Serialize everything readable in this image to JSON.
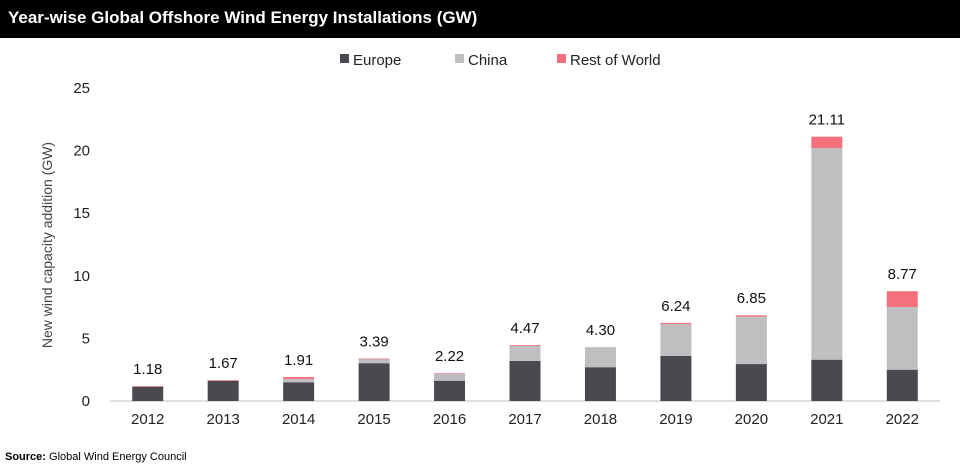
{
  "chart_data": {
    "type": "bar",
    "stacked": true,
    "title": "Year-wise Global Offshore Wind Energy Installations (GW)",
    "ylabel": "New wind capacity addition (GW)",
    "xlabel": "",
    "ylim": [
      0,
      25
    ],
    "yticks": [
      0,
      5,
      10,
      15,
      20,
      25
    ],
    "legend_position": "top-center",
    "grid": false,
    "categories": [
      "2012",
      "2013",
      "2014",
      "2015",
      "2016",
      "2017",
      "2018",
      "2019",
      "2020",
      "2021",
      "2022"
    ],
    "series": [
      {
        "name": "Europe",
        "color": "#4a4950",
        "values": [
          1.15,
          1.6,
          1.5,
          3.02,
          1.62,
          3.2,
          2.7,
          3.6,
          2.95,
          3.3,
          2.5
        ]
      },
      {
        "name": "China",
        "color": "#bfbfc1",
        "values": [
          0.0,
          0.05,
          0.25,
          0.35,
          0.55,
          1.2,
          1.6,
          2.55,
          3.8,
          16.9,
          5.0
        ]
      },
      {
        "name": "Rest of World",
        "color": "#f4707c",
        "values": [
          0.03,
          0.02,
          0.16,
          0.02,
          0.05,
          0.07,
          0.0,
          0.09,
          0.1,
          0.91,
          1.27
        ]
      }
    ],
    "totals": [
      "1.18",
      "1.67",
      "1.91",
      "3.39",
      "2.22",
      "4.47",
      "4.30",
      "6.24",
      "6.85",
      "21.11",
      "8.77"
    ]
  },
  "source": {
    "label": "Source:",
    "text": "Global Wind Energy Council"
  }
}
